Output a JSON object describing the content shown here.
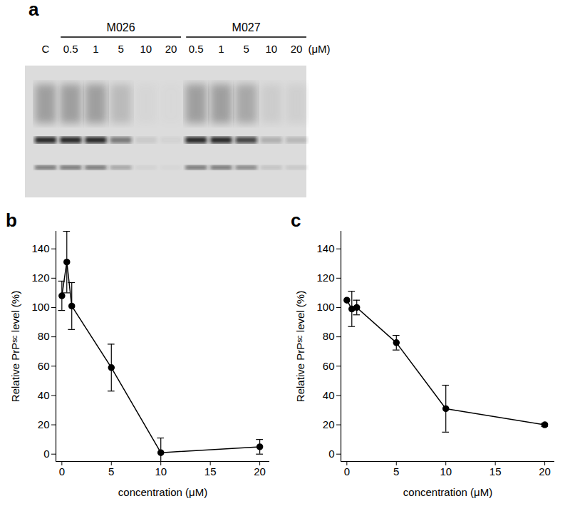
{
  "blot": {
    "panel": "a",
    "control": {
      "label": "C",
      "intensity": 1
    },
    "groups": [
      {
        "name": "M026",
        "lanes": [
          {
            "label": "0.5",
            "intensity": 1
          },
          {
            "label": "1",
            "intensity": 1
          },
          {
            "label": "5",
            "intensity": 0.55
          },
          {
            "label": "10",
            "intensity": 0.1
          },
          {
            "label": "20",
            "intensity": 0.05
          }
        ]
      },
      {
        "name": "M027",
        "lanes": [
          {
            "label": "0.5",
            "intensity": 1
          },
          {
            "label": "1",
            "intensity": 1
          },
          {
            "label": "5",
            "intensity": 0.85
          },
          {
            "label": "10",
            "intensity": 0.25
          },
          {
            "label": "20",
            "intensity": 0.2
          }
        ]
      }
    ],
    "unit": "(μM)"
  },
  "chart_data": [
    {
      "type": "line",
      "panel": "b",
      "x_label": "concentration (μM)",
      "y_label": "Relative PrPˢᶜ level (%)",
      "x": [
        0,
        0.5,
        1,
        5,
        10,
        20
      ],
      "values": [
        108,
        131,
        101,
        59,
        1,
        5
      ],
      "errors": [
        10,
        21,
        16,
        16,
        10,
        5
      ],
      "color": "#000000",
      "marker": "circle",
      "xlim": [
        -0.6,
        21
      ],
      "xticks": [
        0,
        5,
        10,
        15,
        20
      ],
      "ylim": [
        -5,
        152
      ],
      "yticks": [
        0,
        20,
        40,
        60,
        80,
        100,
        120,
        140
      ]
    },
    {
      "type": "line",
      "panel": "c",
      "x_label": "concentration (μM)",
      "y_label": "Relative PrPˢᶜ level (%)",
      "x": [
        0,
        0.5,
        1,
        5,
        10,
        20
      ],
      "values": [
        105,
        99,
        100,
        76,
        31,
        20
      ],
      "errors": [
        0,
        12,
        5,
        5,
        16,
        1
      ],
      "color": "#000000",
      "marker": "circle",
      "xlim": [
        -0.6,
        21
      ],
      "xticks": [
        0,
        5,
        10,
        15,
        20
      ],
      "ylim": [
        -5,
        152
      ],
      "yticks": [
        0,
        20,
        40,
        60,
        80,
        100,
        120,
        140
      ]
    }
  ]
}
